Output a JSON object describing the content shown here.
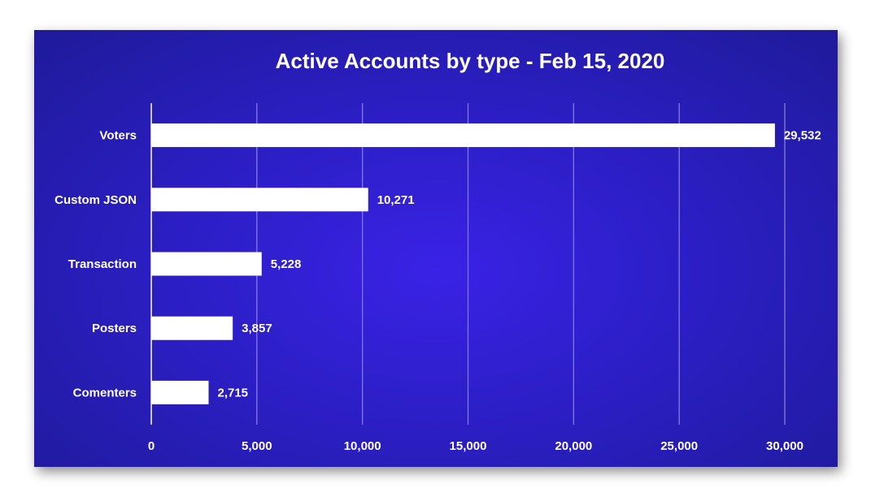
{
  "chart_data": {
    "type": "bar",
    "orientation": "horizontal",
    "title": "Active Accounts by type - Feb 15, 2020",
    "categories": [
      "Voters",
      "Custom JSON",
      "Transaction",
      "Posters",
      "Comenters"
    ],
    "values": [
      29532,
      10271,
      5228,
      3857,
      2715
    ],
    "data_labels": [
      "29,532",
      "10,271",
      "5,228",
      "3,857",
      "2,715"
    ],
    "xlim": [
      0,
      30000
    ],
    "x_ticks": [
      0,
      5000,
      10000,
      15000,
      20000,
      25000,
      30000
    ],
    "x_tick_labels": [
      "0",
      "5,000",
      "10,000",
      "15,000",
      "20,000",
      "25,000",
      "30,000"
    ],
    "xlabel": "",
    "ylabel": "",
    "grid": true,
    "legend": "none",
    "colors": {
      "background": "#2d1fc9",
      "bar": "#ffffff",
      "text": "#ffffff",
      "grid": "#8e86d8"
    }
  }
}
